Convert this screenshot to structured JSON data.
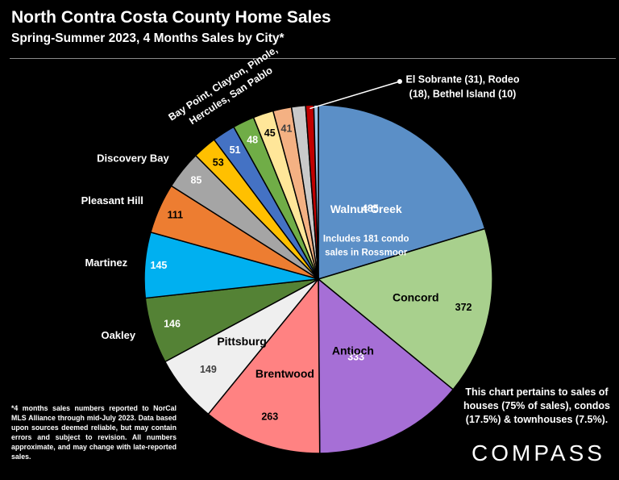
{
  "title": "North Contra Costa County Home Sales",
  "subtitle": "Spring-Summer 2023, 4 Months Sales by City*",
  "chart_data": {
    "type": "pie",
    "slices": [
      {
        "name": "Walnut Creek",
        "value": 485,
        "color": "#5b8fc7"
      },
      {
        "name": "Concord",
        "value": 372,
        "color": "#a8d08d"
      },
      {
        "name": "Antioch",
        "value": 333,
        "color": "#a66fd6"
      },
      {
        "name": "Brentwood",
        "value": 263,
        "color": "#ff8282"
      },
      {
        "name": "Pittsburg",
        "value": 149,
        "color": "#efefef"
      },
      {
        "name": "Oakley",
        "value": 146,
        "color": "#548235"
      },
      {
        "name": "Martinez",
        "value": 145,
        "color": "#00b0f0"
      },
      {
        "name": "Pleasant Hill",
        "value": 111,
        "color": "#ed7d31"
      },
      {
        "name": "Discovery Bay",
        "value": 85,
        "color": "#a5a5a5"
      },
      {
        "name": "Bay Point",
        "value": 53,
        "color": "#ffc000"
      },
      {
        "name": "Clayton",
        "value": 51,
        "color": "#4472c4"
      },
      {
        "name": "Pinole",
        "value": 48,
        "color": "#70ad47"
      },
      {
        "name": "Hercules",
        "value": 45,
        "color": "#ffe699"
      },
      {
        "name": "San Pablo",
        "value": 41,
        "color": "#f4b183"
      },
      {
        "name": "El Sobrante",
        "value": 31,
        "color": "#c9c9c9"
      },
      {
        "name": "Rodeo",
        "value": 18,
        "color": "#c00000"
      },
      {
        "name": "Bethel Island",
        "value": 10,
        "color": "#9dc3e6"
      }
    ],
    "annotations": {
      "walnut_creek_note": [
        "Includes 181 condo",
        "sales in Rossmoor"
      ],
      "small_cities_label": [
        "El Sobrante (31), Rodeo",
        "(18), Bethel Island (10)"
      ],
      "bay_point_group_label": [
        "Bay Point, Clayton, Pinole,",
        "Hercules, San Pablo"
      ]
    }
  },
  "note": "This chart pertains to sales of houses (75% of sales), condos (17.5%) & townhouses (7.5%).",
  "footnote": "*4 months sales numbers reported to NorCal MLS Alliance through mid-July 2023. Data based upon sources deemed reliable, but may contain errors and subject to revision. All numbers approximate, and may change with late-reported sales.",
  "logo": "COMPASS"
}
